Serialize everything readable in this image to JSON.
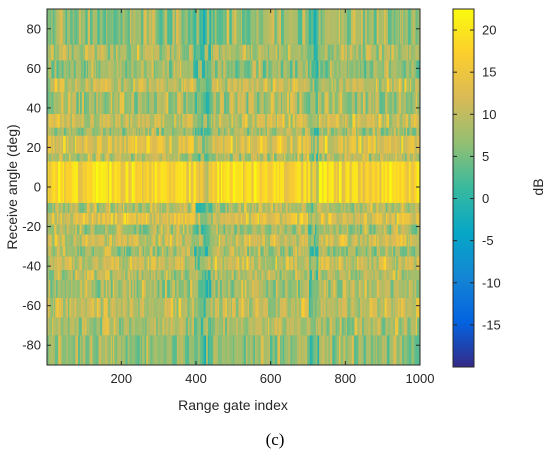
{
  "caption": "(c)",
  "chart_data": {
    "type": "heatmap",
    "title": "",
    "xlabel": "Range gate index",
    "ylabel": "Receive angle (deg)",
    "xlim": [
      1,
      1000
    ],
    "ylim": [
      -90,
      90
    ],
    "xticks": [
      200,
      400,
      600,
      800,
      1000
    ],
    "yticks": [
      80,
      60,
      40,
      20,
      0,
      -20,
      -40,
      -60,
      -80
    ],
    "colormap": "parula",
    "colorbar": {
      "label": "dB",
      "range": [
        -20,
        22.5
      ],
      "ticks": [
        20,
        15,
        10,
        5,
        0,
        -5,
        -10,
        -15
      ]
    },
    "angle_bands": [
      {
        "range": [
          -90,
          -75
        ],
        "level_db": 6.5
      },
      {
        "range": [
          -75,
          -66
        ],
        "level_db": 7.5
      },
      {
        "range": [
          -66,
          -56
        ],
        "level_db": 9
      },
      {
        "range": [
          -56,
          -47
        ],
        "level_db": 7
      },
      {
        "range": [
          -47,
          -42
        ],
        "level_db": 8
      },
      {
        "range": [
          -42,
          -35
        ],
        "level_db": 10
      },
      {
        "range": [
          -35,
          -30
        ],
        "level_db": 7
      },
      {
        "range": [
          -30,
          -24
        ],
        "level_db": 10
      },
      {
        "range": [
          -24,
          -19
        ],
        "level_db": 7
      },
      {
        "range": [
          -19,
          -13
        ],
        "level_db": 12
      },
      {
        "range": [
          -13,
          -8
        ],
        "level_db": 8
      },
      {
        "range": [
          -8,
          13
        ],
        "level_db": 17
      },
      {
        "range": [
          13,
          17
        ],
        "level_db": 8
      },
      {
        "range": [
          17,
          26
        ],
        "level_db": 12
      },
      {
        "range": [
          26,
          30
        ],
        "level_db": 7
      },
      {
        "range": [
          30,
          37
        ],
        "level_db": 10
      },
      {
        "range": [
          37,
          48
        ],
        "level_db": 7
      },
      {
        "range": [
          48,
          55
        ],
        "level_db": 9
      },
      {
        "range": [
          55,
          64
        ],
        "level_db": 6
      },
      {
        "range": [
          64,
          72
        ],
        "level_db": 8
      },
      {
        "range": [
          72,
          90
        ],
        "level_db": 6
      }
    ],
    "quiet_range_gates": [
      [
        395,
        440
      ],
      [
        700,
        725
      ]
    ]
  }
}
